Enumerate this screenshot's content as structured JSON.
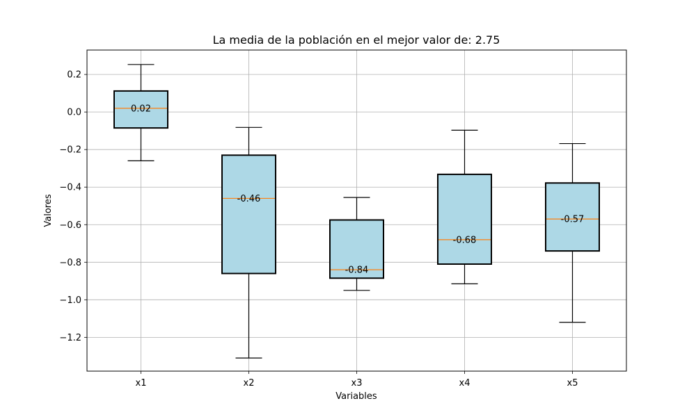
{
  "chart_data": {
    "type": "boxplot",
    "title": "La media de la población en el mejor valor de: 2.75",
    "xlabel": "Variables",
    "ylabel": "Valores",
    "categories": [
      "x1",
      "x2",
      "x3",
      "x4",
      "x5"
    ],
    "ylim": [
      -1.38,
      0.33
    ],
    "yticks": [
      0.2,
      0.0,
      -0.2,
      -0.4,
      -0.6,
      -0.8,
      -1.0,
      -1.2
    ],
    "ytick_labels": [
      "0.2",
      "0.0",
      "−0.2",
      "−0.4",
      "−0.6",
      "−0.8",
      "−1.0",
      "−1.2"
    ],
    "grid": true,
    "box_color": "#add8e6",
    "median_color": "#ff7f0e",
    "boxes": [
      {
        "whisker_low": -0.26,
        "q1": -0.085,
        "median": 0.02,
        "q3": 0.112,
        "whisker_high": 0.253,
        "label": "0.02"
      },
      {
        "whisker_low": -1.31,
        "q1": -0.86,
        "median": -0.46,
        "q3": -0.23,
        "whisker_high": -0.082,
        "label": "-0.46"
      },
      {
        "whisker_low": -0.95,
        "q1": -0.885,
        "median": -0.84,
        "q3": -0.575,
        "whisker_high": -0.455,
        "label": "-0.84"
      },
      {
        "whisker_low": -0.915,
        "q1": -0.81,
        "median": -0.68,
        "q3": -0.332,
        "whisker_high": -0.097,
        "label": "-0.68"
      },
      {
        "whisker_low": -1.12,
        "q1": -0.74,
        "median": -0.57,
        "q3": -0.378,
        "whisker_high": -0.168,
        "label": "-0.57"
      }
    ]
  }
}
